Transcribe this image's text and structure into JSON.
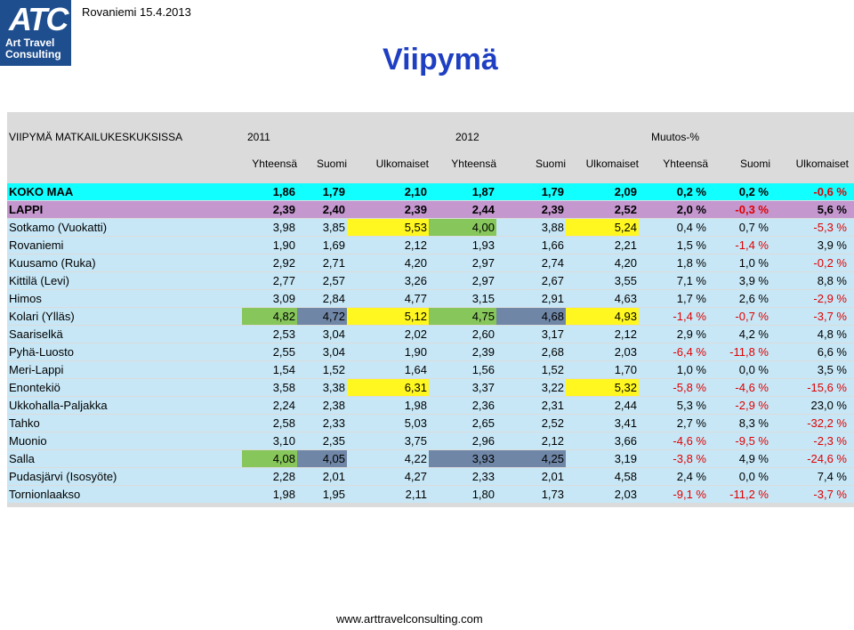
{
  "header": {
    "logo_mark": "ATC",
    "logo_line1": "Art Travel",
    "logo_line2": "Consulting",
    "date": "Rovaniemi 15.4.2013",
    "title": "Viipymä"
  },
  "table": {
    "caption": "VIIPYMÄ MATKAILUKESKUKSISSA",
    "groups": [
      "2011",
      "2012",
      "Muutos-%"
    ],
    "subheaders": [
      "Yhteensä",
      "Suomi",
      "Ulkomaiset",
      "Yhteensä",
      "Suomi",
      "Ulkomaiset",
      "Yhteensä",
      "Suomi",
      "Ulkomaiset"
    ],
    "rows": [
      {
        "name": "KOKO MAA",
        "style": "koko",
        "values": [
          "1,86",
          "1,79",
          "2,10",
          "1,87",
          "1,79",
          "2,09",
          "0,2 %",
          "0,2 %",
          "-0,6 %"
        ],
        "fills": [
          "",
          "",
          "",
          "",
          "",
          "",
          "",
          "",
          ""
        ]
      },
      {
        "name": "LAPPI",
        "style": "lappi",
        "values": [
          "2,39",
          "2,40",
          "2,39",
          "2,44",
          "2,39",
          "2,52",
          "2,0 %",
          "-0,3 %",
          "5,6 %"
        ],
        "fills": [
          "",
          "",
          "",
          "",
          "",
          "",
          "",
          "",
          ""
        ]
      },
      {
        "name": "Sotkamo (Vuokatti)",
        "style": "",
        "values": [
          "3,98",
          "3,85",
          "5,53",
          "4,00",
          "3,88",
          "5,24",
          "0,4 %",
          "0,7 %",
          "-5,3 %"
        ],
        "fills": [
          "",
          "",
          "yellow",
          "green",
          "",
          "yellow",
          "",
          "",
          ""
        ]
      },
      {
        "name": "Rovaniemi",
        "style": "",
        "values": [
          "1,90",
          "1,69",
          "2,12",
          "1,93",
          "1,66",
          "2,21",
          "1,5 %",
          "-1,4 %",
          "3,9 %"
        ],
        "fills": [
          "",
          "",
          "",
          "",
          "",
          "",
          "",
          "",
          ""
        ]
      },
      {
        "name": "Kuusamo (Ruka)",
        "style": "",
        "values": [
          "2,92",
          "2,71",
          "4,20",
          "2,97",
          "2,74",
          "4,20",
          "1,8 %",
          "1,0 %",
          "-0,2 %"
        ],
        "fills": [
          "",
          "",
          "",
          "",
          "",
          "",
          "",
          "",
          ""
        ]
      },
      {
        "name": "Kittilä (Levi)",
        "style": "",
        "values": [
          "2,77",
          "2,57",
          "3,26",
          "2,97",
          "2,67",
          "3,55",
          "7,1 %",
          "3,9 %",
          "8,8 %"
        ],
        "fills": [
          "",
          "",
          "",
          "",
          "",
          "",
          "",
          "",
          ""
        ]
      },
      {
        "name": "Himos",
        "style": "",
        "values": [
          "3,09",
          "2,84",
          "4,77",
          "3,15",
          "2,91",
          "4,63",
          "1,7 %",
          "2,6 %",
          "-2,9 %"
        ],
        "fills": [
          "",
          "",
          "",
          "",
          "",
          "",
          "",
          "",
          ""
        ]
      },
      {
        "name": "Kolari (Ylläs)",
        "style": "",
        "values": [
          "4,82",
          "4,72",
          "5,12",
          "4,75",
          "4,68",
          "4,93",
          "-1,4 %",
          "-0,7 %",
          "-3,7 %"
        ],
        "fills": [
          "green",
          "gray",
          "yellow",
          "green",
          "gray",
          "yellow",
          "",
          "",
          ""
        ]
      },
      {
        "name": "Saariselkä",
        "style": "",
        "values": [
          "2,53",
          "3,04",
          "2,02",
          "2,60",
          "3,17",
          "2,12",
          "2,9 %",
          "4,2 %",
          "4,8 %"
        ],
        "fills": [
          "",
          "",
          "",
          "",
          "",
          "",
          "",
          "",
          ""
        ]
      },
      {
        "name": "Pyhä-Luosto",
        "style": "",
        "values": [
          "2,55",
          "3,04",
          "1,90",
          "2,39",
          "2,68",
          "2,03",
          "-6,4 %",
          "-11,8 %",
          "6,6 %"
        ],
        "fills": [
          "",
          "",
          "",
          "",
          "",
          "",
          "",
          "",
          ""
        ]
      },
      {
        "name": "Meri-Lappi",
        "style": "",
        "values": [
          "1,54",
          "1,52",
          "1,64",
          "1,56",
          "1,52",
          "1,70",
          "1,0 %",
          "0,0 %",
          "3,5 %"
        ],
        "fills": [
          "",
          "",
          "",
          "",
          "",
          "",
          "",
          "",
          ""
        ]
      },
      {
        "name": "Enontekiö",
        "style": "",
        "values": [
          "3,58",
          "3,38",
          "6,31",
          "3,37",
          "3,22",
          "5,32",
          "-5,8 %",
          "-4,6 %",
          "-15,6 %"
        ],
        "fills": [
          "",
          "",
          "yellow",
          "",
          "",
          "yellow",
          "",
          "",
          ""
        ]
      },
      {
        "name": "Ukkohalla-Paljakka",
        "style": "",
        "values": [
          "2,24",
          "2,38",
          "1,98",
          "2,36",
          "2,31",
          "2,44",
          "5,3 %",
          "-2,9 %",
          "23,0 %"
        ],
        "fills": [
          "",
          "",
          "",
          "",
          "",
          "",
          "",
          "",
          ""
        ]
      },
      {
        "name": "Tahko",
        "style": "",
        "values": [
          "2,58",
          "2,33",
          "5,03",
          "2,65",
          "2,52",
          "3,41",
          "2,7 %",
          "8,3 %",
          "-32,2 %"
        ],
        "fills": [
          "",
          "",
          "",
          "",
          "",
          "",
          "",
          "",
          ""
        ]
      },
      {
        "name": "Muonio",
        "style": "",
        "values": [
          "3,10",
          "2,35",
          "3,75",
          "2,96",
          "2,12",
          "3,66",
          "-4,6 %",
          "-9,5 %",
          "-2,3 %"
        ],
        "fills": [
          "",
          "",
          "",
          "",
          "",
          "",
          "",
          "",
          ""
        ]
      },
      {
        "name": "Salla",
        "style": "",
        "values": [
          "4,08",
          "4,05",
          "4,22",
          "3,93",
          "4,25",
          "3,19",
          "-3,8 %",
          "4,9 %",
          "-24,6 %"
        ],
        "fills": [
          "green",
          "gray",
          "",
          "gray",
          "gray",
          "",
          "",
          "",
          ""
        ]
      },
      {
        "name": "Pudasjärvi (Isosyöte)",
        "style": "",
        "values": [
          "2,28",
          "2,01",
          "4,27",
          "2,33",
          "2,01",
          "4,58",
          "2,4 %",
          "0,0 %",
          "7,4 %"
        ],
        "fills": [
          "",
          "",
          "",
          "",
          "",
          "",
          "",
          "",
          ""
        ]
      },
      {
        "name": "Tornionlaakso",
        "style": "",
        "values": [
          "1,98",
          "1,95",
          "2,11",
          "1,80",
          "1,73",
          "2,03",
          "-9,1 %",
          "-11,2 %",
          "-3,7 %"
        ],
        "fills": [
          "",
          "",
          "",
          "",
          "",
          "",
          "",
          "",
          ""
        ]
      }
    ]
  },
  "colors": {
    "koko_row": "#12ffff",
    "lappi_row": "#c497cf",
    "row_bg": "#c7e7f6",
    "highlight_green": "#86c65a",
    "highlight_yellow": "#fff71f",
    "highlight_gray": "#6f86a6",
    "negative": "#e00000",
    "title": "#1f3fc2"
  },
  "footer": {
    "url": "www.arttravelconsulting.com"
  }
}
